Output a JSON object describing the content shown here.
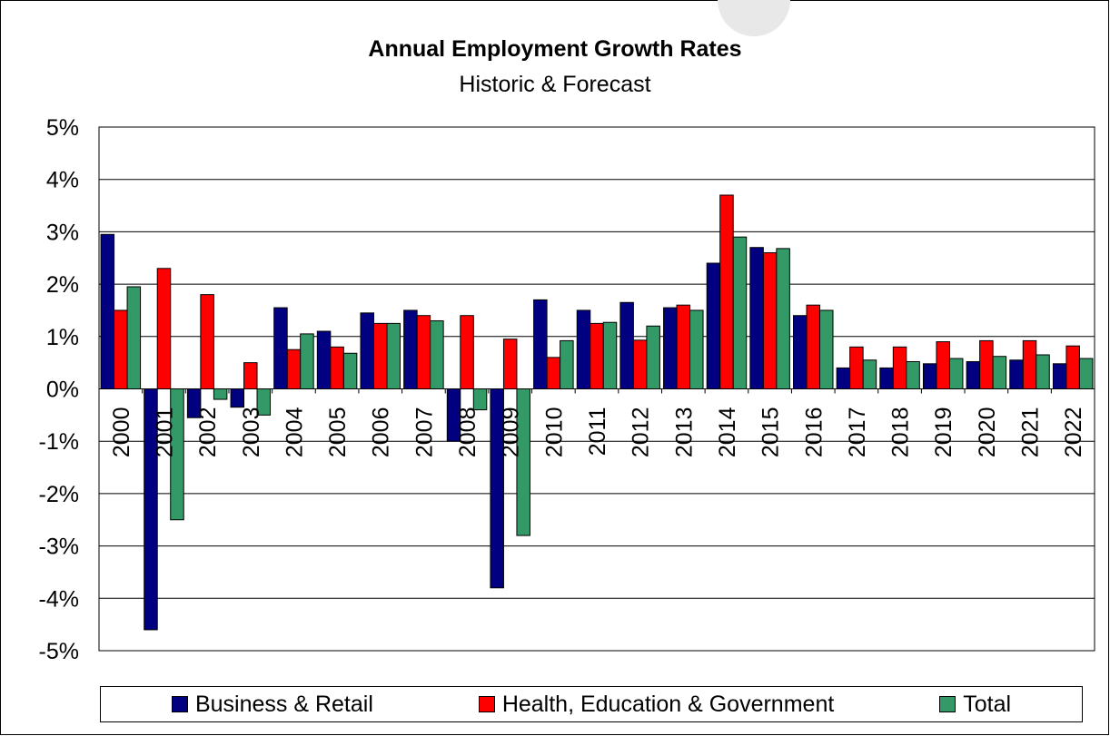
{
  "chart_data": {
    "type": "bar",
    "title": "Annual Employment Growth Rates",
    "subtitle": "Historic & Forecast",
    "categories": [
      "2000",
      "2001",
      "2002",
      "2003",
      "2004",
      "2005",
      "2006",
      "2007",
      "2008",
      "2009",
      "2010",
      "2011",
      "2012",
      "2013",
      "2014",
      "2015",
      "2016",
      "2017",
      "2018",
      "2019",
      "2020",
      "2021",
      "2022"
    ],
    "series": [
      {
        "name": "Business & Retail",
        "color": "#000080",
        "values": [
          2.95,
          -4.6,
          -0.55,
          -0.35,
          1.55,
          1.1,
          1.45,
          1.5,
          -1.0,
          -3.8,
          1.7,
          1.5,
          1.65,
          1.55,
          2.4,
          2.7,
          1.4,
          0.4,
          0.4,
          0.48,
          0.52,
          0.55,
          0.48
        ]
      },
      {
        "name": "Health, Education & Government",
        "color": "#ff0000",
        "values": [
          1.5,
          2.3,
          1.8,
          0.5,
          0.75,
          0.8,
          1.25,
          1.4,
          1.4,
          0.95,
          0.6,
          1.25,
          0.93,
          1.6,
          3.7,
          2.6,
          1.6,
          0.8,
          0.8,
          0.9,
          0.92,
          0.92,
          0.82
        ]
      },
      {
        "name": "Total",
        "color": "#339966",
        "values": [
          1.95,
          -2.5,
          -0.2,
          -0.5,
          1.05,
          0.68,
          1.25,
          1.3,
          -0.4,
          -2.8,
          0.92,
          1.27,
          1.2,
          1.5,
          2.9,
          2.68,
          1.5,
          0.55,
          0.52,
          0.58,
          0.62,
          0.65,
          0.58
        ]
      }
    ],
    "yticks": [
      "5%",
      "4%",
      "3%",
      "2%",
      "1%",
      "0%",
      "-1%",
      "-2%",
      "-3%",
      "-4%",
      "-5%"
    ],
    "ylim": [
      -5,
      5
    ],
    "grid": true,
    "legend_position": "bottom"
  }
}
